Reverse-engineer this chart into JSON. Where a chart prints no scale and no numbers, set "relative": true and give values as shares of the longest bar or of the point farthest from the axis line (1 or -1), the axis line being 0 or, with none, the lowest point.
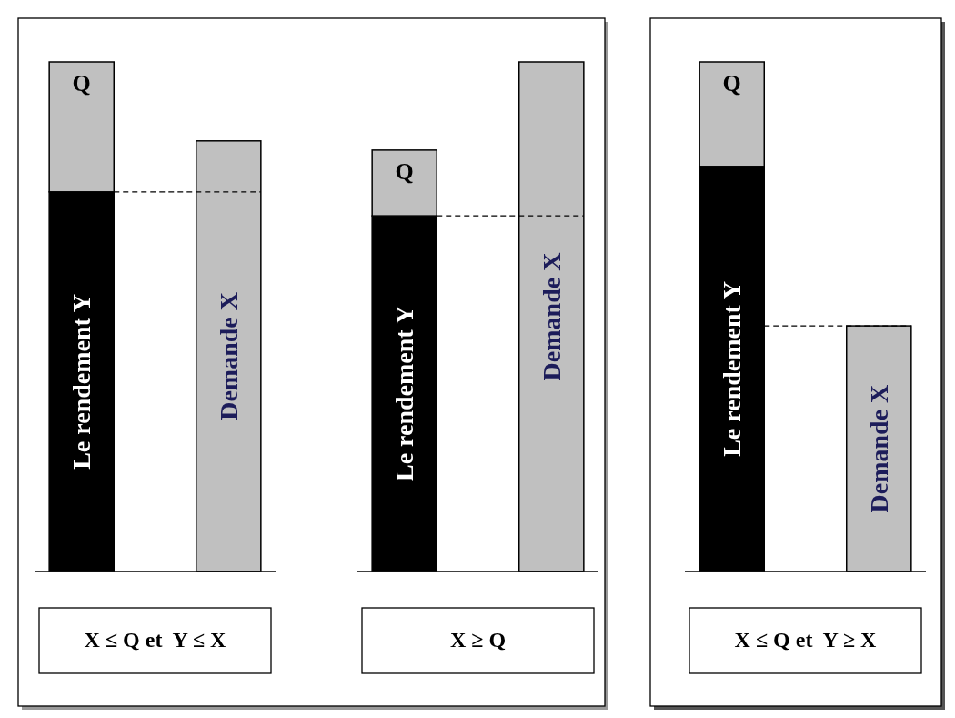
{
  "chart_data": [
    {
      "type": "bar",
      "relative": true,
      "stacked": true,
      "categories": [
        null,
        null
      ],
      "series": [
        {
          "name": "Le rendement  Y",
          "color": "#000000",
          "values": [
            0.745,
            null
          ]
        },
        {
          "name": "Q",
          "color": "#c0c0c0",
          "values": [
            0.255,
            null
          ]
        },
        {
          "name": "Demande X",
          "color": "#c0c0c0",
          "values": [
            null,
            0.845
          ]
        }
      ],
      "ref_lines": [
        {
          "axis": "y",
          "value": 0.745,
          "line_style": "dashed",
          "color": "#000000"
        }
      ],
      "annotations": [
        "X ≤ Q et  Y ≤ X"
      ]
    },
    {
      "type": "bar",
      "relative": true,
      "stacked": true,
      "categories": [
        null,
        null
      ],
      "series": [
        {
          "name": "Le rendement  Y",
          "color": "#000000",
          "values": [
            0.698,
            null
          ]
        },
        {
          "name": "Q",
          "color": "#c0c0c0",
          "values": [
            0.129,
            null
          ]
        },
        {
          "name": "Demande X",
          "color": "#c0c0c0",
          "values": [
            null,
            1
          ]
        }
      ],
      "ref_lines": [
        {
          "axis": "y",
          "value": 0.698,
          "line_style": "dashed",
          "color": "#000000"
        }
      ],
      "annotations": [
        "X ≥ Q"
      ]
    },
    {
      "type": "bar",
      "relative": true,
      "stacked": true,
      "categories": [
        null,
        null
      ],
      "series": [
        {
          "name": "Le rendement  Y",
          "color": "#000000",
          "values": [
            0.795,
            null
          ]
        },
        {
          "name": "Q",
          "color": "#c0c0c0",
          "values": [
            0.205,
            null
          ]
        },
        {
          "name": "Demande X",
          "color": "#c0c0c0",
          "values": [
            null,
            0.482
          ]
        }
      ],
      "ref_lines": [
        {
          "axis": "y",
          "value": 0.482,
          "line_style": "dashed",
          "color": "#000000"
        }
      ],
      "annotations": [
        "X ≤ Q et  Y ≥ X"
      ]
    }
  ]
}
